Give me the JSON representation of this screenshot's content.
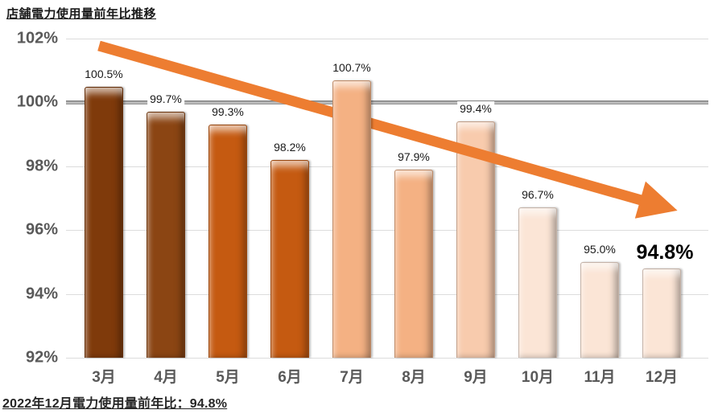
{
  "page": {
    "title": "店舗電力使用量前年比推移",
    "footer": "2022年12月電力使用量前年比：94.8%"
  },
  "chart_data": {
    "type": "bar",
    "title": "店舗電力使用量前年比推移",
    "categories": [
      "3月",
      "4月",
      "5月",
      "6月",
      "7月",
      "8月",
      "9月",
      "10月",
      "11月",
      "12月"
    ],
    "values": [
      100.5,
      99.7,
      99.3,
      98.2,
      100.7,
      97.9,
      99.4,
      96.7,
      95.0,
      94.8
    ],
    "data_labels": [
      "100.5%",
      "99.7%",
      "99.3%",
      "98.2%",
      "100.7%",
      "97.9%",
      "99.4%",
      "96.7%",
      "95.0%",
      "94.8%"
    ],
    "emphasized_index": 9,
    "bar_colors": [
      "#7F3A0B",
      "#8B4513",
      "#C55A11",
      "#C55A11",
      "#F4B183",
      "#F4B183",
      "#F8CBAD",
      "#FBE5D6",
      "#FBE5D6",
      "#FBE5D6"
    ],
    "ylim": [
      92,
      102
    ],
    "yticks": [
      102,
      100,
      98,
      96,
      94,
      92
    ],
    "ytick_labels": [
      "102%",
      "100%",
      "98%",
      "96%",
      "94%",
      "92%"
    ],
    "reference_line": {
      "value": 100,
      "style": "thick-gray"
    },
    "trend_arrow": {
      "color": "#ED7D31",
      "direction": "down-right"
    },
    "grid": true,
    "legend": false,
    "xlabel": "",
    "ylabel": ""
  }
}
